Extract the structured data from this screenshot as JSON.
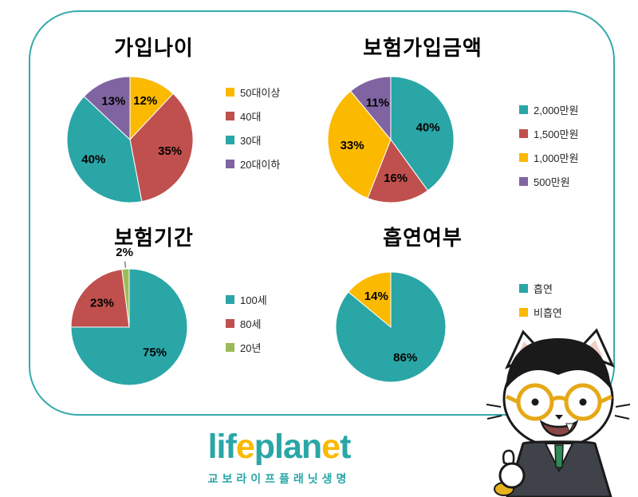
{
  "frame": {
    "border_color": "#35aaab"
  },
  "chart_data": [
    {
      "type": "pie",
      "title": "가입나이",
      "labels": [
        "50대이상",
        "40대",
        "30대",
        "20대이하"
      ],
      "values": [
        12,
        35,
        40,
        13
      ],
      "pct_labels": [
        "12%",
        "35%",
        "40%",
        "13%"
      ],
      "colors": [
        "#fbb900",
        "#c0504d",
        "#2aa6a7",
        "#8064a2"
      ],
      "start_angle_deg": 0,
      "direction": "clockwise",
      "legend_position": "right"
    },
    {
      "type": "pie",
      "title": "보험가입금액",
      "labels": [
        "2,000만원",
        "1,500만원",
        "1,000만원",
        "500만원"
      ],
      "values": [
        40,
        16,
        33,
        11
      ],
      "pct_labels": [
        "40%",
        "16%",
        "33%",
        "11%"
      ],
      "colors": [
        "#2aa6a7",
        "#c0504d",
        "#fbb900",
        "#8064a2"
      ],
      "start_angle_deg": 0,
      "direction": "clockwise",
      "legend_position": "right"
    },
    {
      "type": "pie",
      "title": "보험기간",
      "labels": [
        "100세",
        "80세",
        "20년"
      ],
      "values": [
        75,
        23,
        2
      ],
      "pct_labels": [
        "75%",
        "23%",
        "2%"
      ],
      "colors": [
        "#2aa6a7",
        "#c0504d",
        "#9bbb59"
      ],
      "start_angle_deg": 0,
      "direction": "clockwise",
      "legend_position": "right"
    },
    {
      "type": "pie",
      "title": "흡연여부",
      "labels": [
        "흡연",
        "비흡연"
      ],
      "values": [
        86,
        14
      ],
      "pct_labels": [
        "86%",
        "14%"
      ],
      "colors": [
        "#2aa6a7",
        "#fbb900"
      ],
      "start_angle_deg": 0,
      "direction": "clockwise",
      "legend_position": "right"
    }
  ],
  "logo": {
    "wordmark": "lifeplanet",
    "segments": [
      {
        "text": "lif",
        "color": "#2aa6a7"
      },
      {
        "text": "e",
        "color": "#fbb900"
      },
      {
        "text": "plan",
        "color": "#2aa6a7"
      },
      {
        "text": "e",
        "color": "#fbb900"
      },
      {
        "text": "t",
        "color": "#2aa6a7"
      }
    ],
    "subtitle": "교보라이프플래닛생명"
  }
}
